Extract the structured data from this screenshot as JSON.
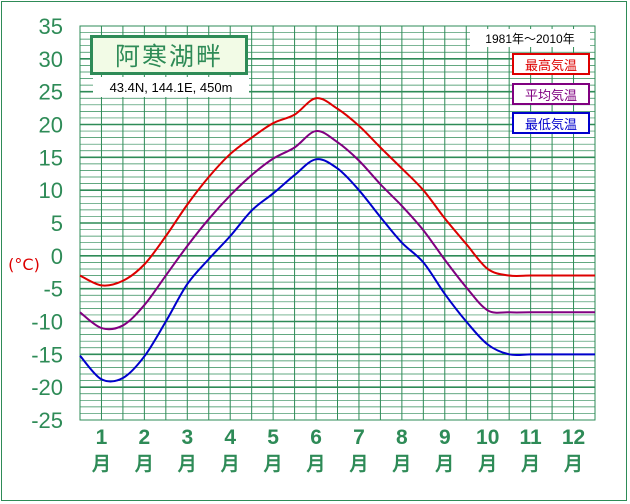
{
  "chart_data": {
    "type": "line",
    "title": "阿寒湖畔",
    "subtitle": "43.4N, 144.1E, 450m",
    "period": "1981年～2010年",
    "ylabel": "(°C)",
    "ylim": [
      -25,
      35
    ],
    "yticks": [
      35,
      30,
      25,
      20,
      15,
      10,
      5,
      0,
      -5,
      -10,
      -15,
      -20,
      -25
    ],
    "months": [
      "1",
      "2",
      "3",
      "4",
      "5",
      "6",
      "7",
      "8",
      "9",
      "10",
      "11",
      "12"
    ],
    "month_suffix": "月",
    "x": [
      0,
      0.5,
      1,
      1.5,
      2,
      2.5,
      3,
      3.5,
      4,
      4.5,
      5,
      5.5,
      6,
      6.5,
      7,
      7.5,
      8,
      8.5,
      9,
      9.5,
      10,
      10.5,
      11,
      11.5,
      12
    ],
    "grid": true,
    "series": [
      {
        "name": "最高気温",
        "color": "#dd0000",
        "values": [
          -3.0,
          -4.5,
          -3.8,
          -1.3,
          3.0,
          7.8,
          12.0,
          15.5,
          18.0,
          20.2,
          21.5,
          24.0,
          22.4,
          19.8,
          16.5,
          13.3,
          10.0,
          5.7,
          1.8,
          -2.0,
          -3.0,
          -3.0,
          -3.0,
          -3.0,
          -3.0
        ]
      },
      {
        "name": "平均気温",
        "color": "#800080",
        "values": [
          -8.6,
          -11.0,
          -10.6,
          -7.5,
          -3.0,
          1.5,
          5.6,
          9.2,
          12.3,
          14.8,
          16.5,
          19.0,
          17.3,
          14.5,
          10.9,
          7.6,
          3.9,
          -0.6,
          -4.8,
          -8.3,
          -8.6,
          -8.6,
          -8.6,
          -8.6,
          -8.6
        ]
      },
      {
        "name": "最低気温",
        "color": "#0000cc",
        "values": [
          -15.2,
          -18.8,
          -18.6,
          -15.3,
          -10.0,
          -4.3,
          -0.5,
          3.0,
          6.9,
          9.5,
          12.3,
          14.7,
          13.3,
          10.0,
          5.9,
          2.0,
          -1.0,
          -5.8,
          -10.0,
          -13.5,
          -15.0,
          -15.0,
          -15.0,
          -15.0,
          -15.0
        ]
      }
    ]
  }
}
